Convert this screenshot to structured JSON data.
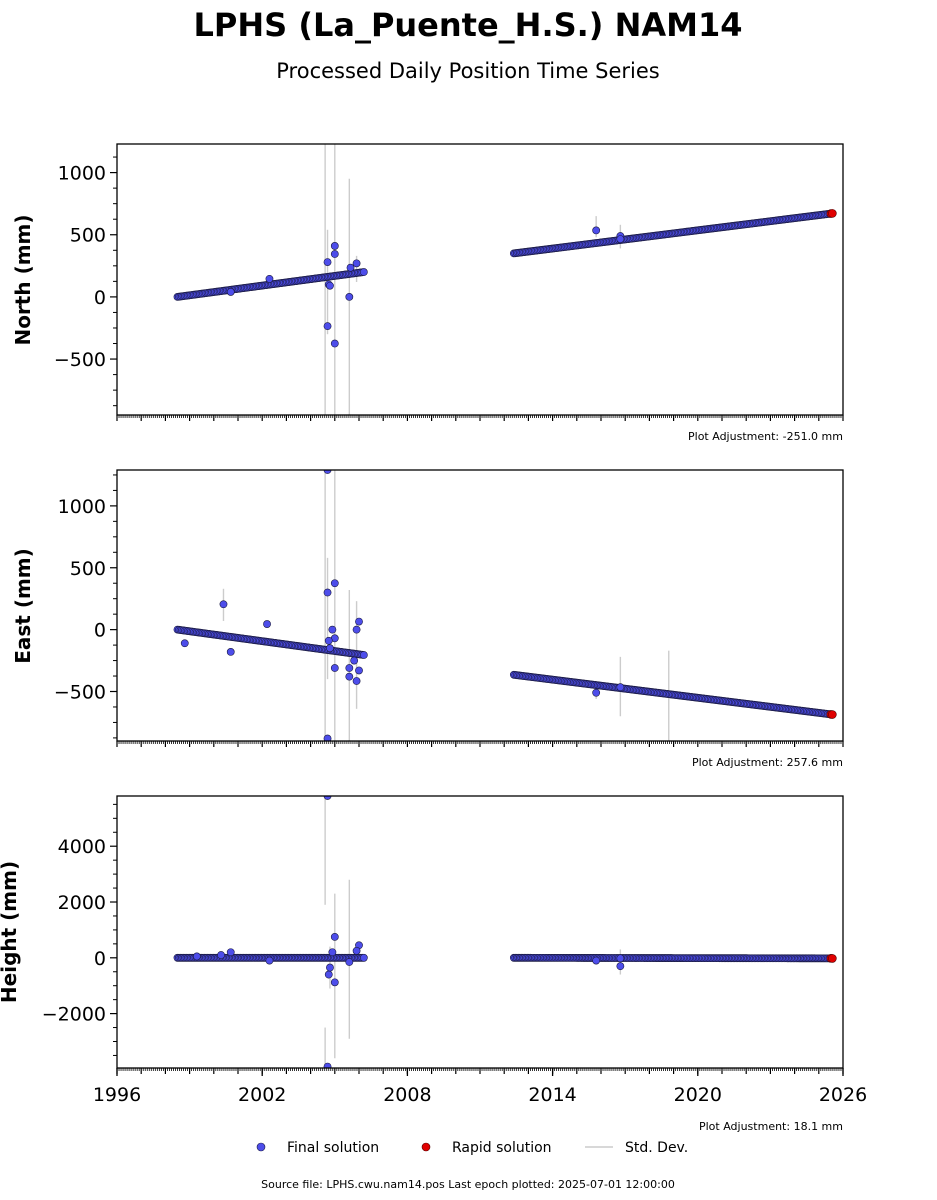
{
  "figure": {
    "title": "LPHS (La_Puente_H.S.) NAM14",
    "subtitle": "Processed Daily Position Time Series",
    "source_text": "Source file: LPHS.cwu.nam14.pos  Last epoch plotted: 2025-07-01 12:00:00"
  },
  "legend": {
    "final_label": "Final solution",
    "rapid_label": "Rapid solution",
    "std_label": "Std. Dev."
  },
  "colors": {
    "final_fill": "#4d4dea",
    "final_edge": "#1a1a40",
    "rapid_fill": "#e00000",
    "std_line": "#cccccc"
  },
  "chart_data": [
    {
      "type": "scatter",
      "ylabel": "North (mm)",
      "adjustment": "Plot Adjustment: -251.0 mm",
      "xlim": [
        1996,
        2026
      ],
      "ylim": [
        -950,
        1230
      ],
      "yticks": [
        -500,
        0,
        500,
        1000
      ],
      "ytick_labels": [
        "−500",
        "0",
        "500",
        "1000"
      ],
      "segments": [
        {
          "x0": 1998.5,
          "x1": 2006.2,
          "y0": 0,
          "y1": 200
        },
        {
          "x0": 2012.4,
          "x1": 2025.5,
          "y0": 350,
          "y1": 670
        }
      ],
      "outliers": [
        [
          2004.7,
          280
        ],
        [
          2004.75,
          100
        ],
        [
          2004.8,
          90
        ],
        [
          2004.7,
          -235
        ],
        [
          2005.0,
          410
        ],
        [
          2005.0,
          345
        ],
        [
          2005.0,
          -375
        ],
        [
          2005.6,
          0
        ],
        [
          2005.9,
          270
        ],
        [
          2005.65,
          235
        ],
        [
          2015.8,
          535
        ],
        [
          2016.8,
          490
        ],
        [
          2016.8,
          465
        ],
        [
          2002.3,
          145
        ],
        [
          2000.7,
          40
        ]
      ],
      "error_bars": [
        [
          2004.6,
          -950,
          1230
        ],
        [
          2005.0,
          -950,
          1230
        ],
        [
          2005.6,
          -950,
          950
        ],
        [
          2004.7,
          -300,
          540
        ],
        [
          2005.0,
          -200,
          620
        ],
        [
          2015.8,
          480,
          650
        ],
        [
          2016.8,
          390,
          580
        ],
        [
          2005.9,
          120,
          330
        ]
      ],
      "rapid": [
        [
          2025.5,
          670
        ],
        [
          2025.56,
          672
        ]
      ]
    },
    {
      "type": "scatter",
      "ylabel": "East (mm)",
      "adjustment": "Plot Adjustment: 257.6 mm",
      "xlim": [
        1996,
        2026
      ],
      "ylim": [
        -900,
        1290
      ],
      "yticks": [
        -500,
        0,
        500,
        1000
      ],
      "ytick_labels": [
        "−500",
        "0",
        "500",
        "1000"
      ],
      "segments": [
        {
          "x0": 1998.5,
          "x1": 2006.2,
          "y0": 0,
          "y1": -205
        },
        {
          "x0": 2012.4,
          "x1": 2025.5,
          "y0": -365,
          "y1": -685
        }
      ],
      "outliers": [
        [
          1998.8,
          -110
        ],
        [
          2000.4,
          205
        ],
        [
          2000.7,
          -180
        ],
        [
          2002.2,
          45
        ],
        [
          2004.7,
          300
        ],
        [
          2004.7,
          1290
        ],
        [
          2004.7,
          -880
        ],
        [
          2004.9,
          0
        ],
        [
          2005.0,
          375
        ],
        [
          2005.0,
          -310
        ],
        [
          2005.0,
          -70
        ],
        [
          2004.75,
          -90
        ],
        [
          2005.6,
          -380
        ],
        [
          2005.6,
          -310
        ],
        [
          2005.9,
          0
        ],
        [
          2006.0,
          65
        ],
        [
          2005.9,
          -415
        ],
        [
          2006.0,
          -330
        ],
        [
          2005.8,
          -250
        ],
        [
          2015.8,
          -510
        ],
        [
          2016.8,
          -465
        ],
        [
          2004.8,
          -150
        ]
      ],
      "error_bars": [
        [
          2004.6,
          -900,
          1290
        ],
        [
          2005.0,
          -900,
          1290
        ],
        [
          2005.6,
          -900,
          320
        ],
        [
          2004.7,
          -400,
          580
        ],
        [
          2000.4,
          70,
          330
        ],
        [
          2005.9,
          -640,
          230
        ],
        [
          2016.8,
          -700,
          -220
        ],
        [
          2018.8,
          -900,
          -170
        ],
        [
          2015.8,
          -560,
          -450
        ]
      ],
      "rapid": [
        [
          2025.5,
          -685
        ],
        [
          2025.56,
          -686
        ]
      ]
    },
    {
      "type": "scatter",
      "ylabel": "Height (mm)",
      "adjustment": "Plot Adjustment: 18.1 mm",
      "xlim": [
        1996,
        2026
      ],
      "ylim": [
        -3950,
        5800
      ],
      "yticks": [
        -2000,
        0,
        2000,
        4000
      ],
      "ytick_labels": [
        "−2000",
        "0",
        "2000",
        "4000"
      ],
      "xticks": [
        1996,
        2002,
        2008,
        2014,
        2020,
        2026
      ],
      "xtick_labels": [
        "1996",
        "2002",
        "2008",
        "2014",
        "2020",
        "2026"
      ],
      "segments": [
        {
          "x0": 1998.5,
          "x1": 2006.2,
          "y0": 0,
          "y1": 0
        },
        {
          "x0": 2012.4,
          "x1": 2025.5,
          "y0": 0,
          "y1": -20
        }
      ],
      "outliers": [
        [
          2004.7,
          5800
        ],
        [
          2004.7,
          -3900
        ],
        [
          2004.75,
          -600
        ],
        [
          2005.0,
          750
        ],
        [
          2005.0,
          -880
        ],
        [
          2004.9,
          200
        ],
        [
          2006.0,
          450
        ],
        [
          2005.9,
          250
        ],
        [
          2000.7,
          200
        ],
        [
          2000.3,
          100
        ],
        [
          1999.3,
          50
        ],
        [
          2002.3,
          -100
        ],
        [
          2016.8,
          -300
        ],
        [
          2016.8,
          -20
        ],
        [
          2015.8,
          -100
        ],
        [
          2005.6,
          -150
        ],
        [
          2004.8,
          -350
        ]
      ],
      "error_bars": [
        [
          2004.6,
          1900,
          5800
        ],
        [
          2004.6,
          -3950,
          -2500
        ],
        [
          2005.0,
          -3600,
          2300
        ],
        [
          2005.6,
          -2900,
          2800
        ],
        [
          2016.8,
          -600,
          300
        ],
        [
          2004.8,
          -1100,
          400
        ]
      ],
      "rapid": [
        [
          2025.5,
          -20
        ],
        [
          2025.56,
          -22
        ]
      ]
    }
  ]
}
